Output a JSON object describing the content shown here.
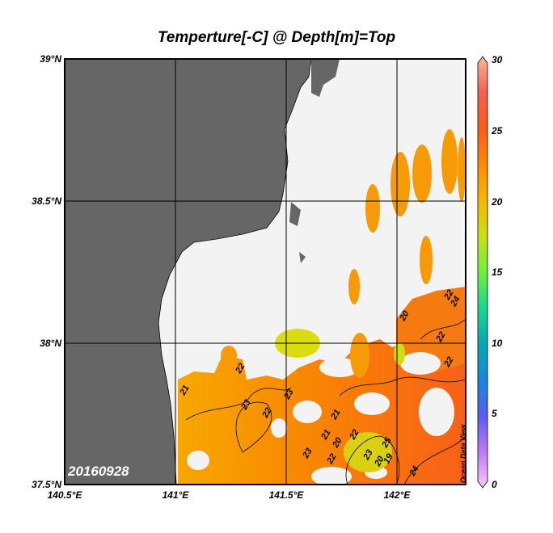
{
  "title": "Temperture[-C] @ Depth[m]=Top",
  "lat_ticks": [
    "39°N",
    "38.5°N",
    "38°N",
    "37.5°N"
  ],
  "lon_ticks": [
    "140.5°E",
    "141°E",
    "141.5°E",
    "142°E"
  ],
  "date_label": "20160928",
  "watermark": "Ocean Data View",
  "colorbar": {
    "ticks": [
      "30",
      "25",
      "20",
      "15",
      "10",
      "5",
      "0"
    ],
    "min": 0,
    "max": 30,
    "colors": [
      "#f9c8f5",
      "#c07aef",
      "#5a5cf5",
      "#1a86e0",
      "#06a8b0",
      "#18d890",
      "#70f040",
      "#c8e015",
      "#f5b800",
      "#ff8a00",
      "#ff5a1a",
      "#f06050",
      "#f5b8a0"
    ]
  },
  "colors": {
    "land": "#666666",
    "ocean": "#f3f3f3",
    "grid": "#000000"
  },
  "contour_labels": [
    "21",
    "22",
    "23",
    "22",
    "23",
    "21",
    "22",
    "20",
    "21",
    "22",
    "23",
    "20",
    "22",
    "22",
    "23",
    "24",
    "22",
    "24",
    "19",
    "20",
    "25"
  ]
}
